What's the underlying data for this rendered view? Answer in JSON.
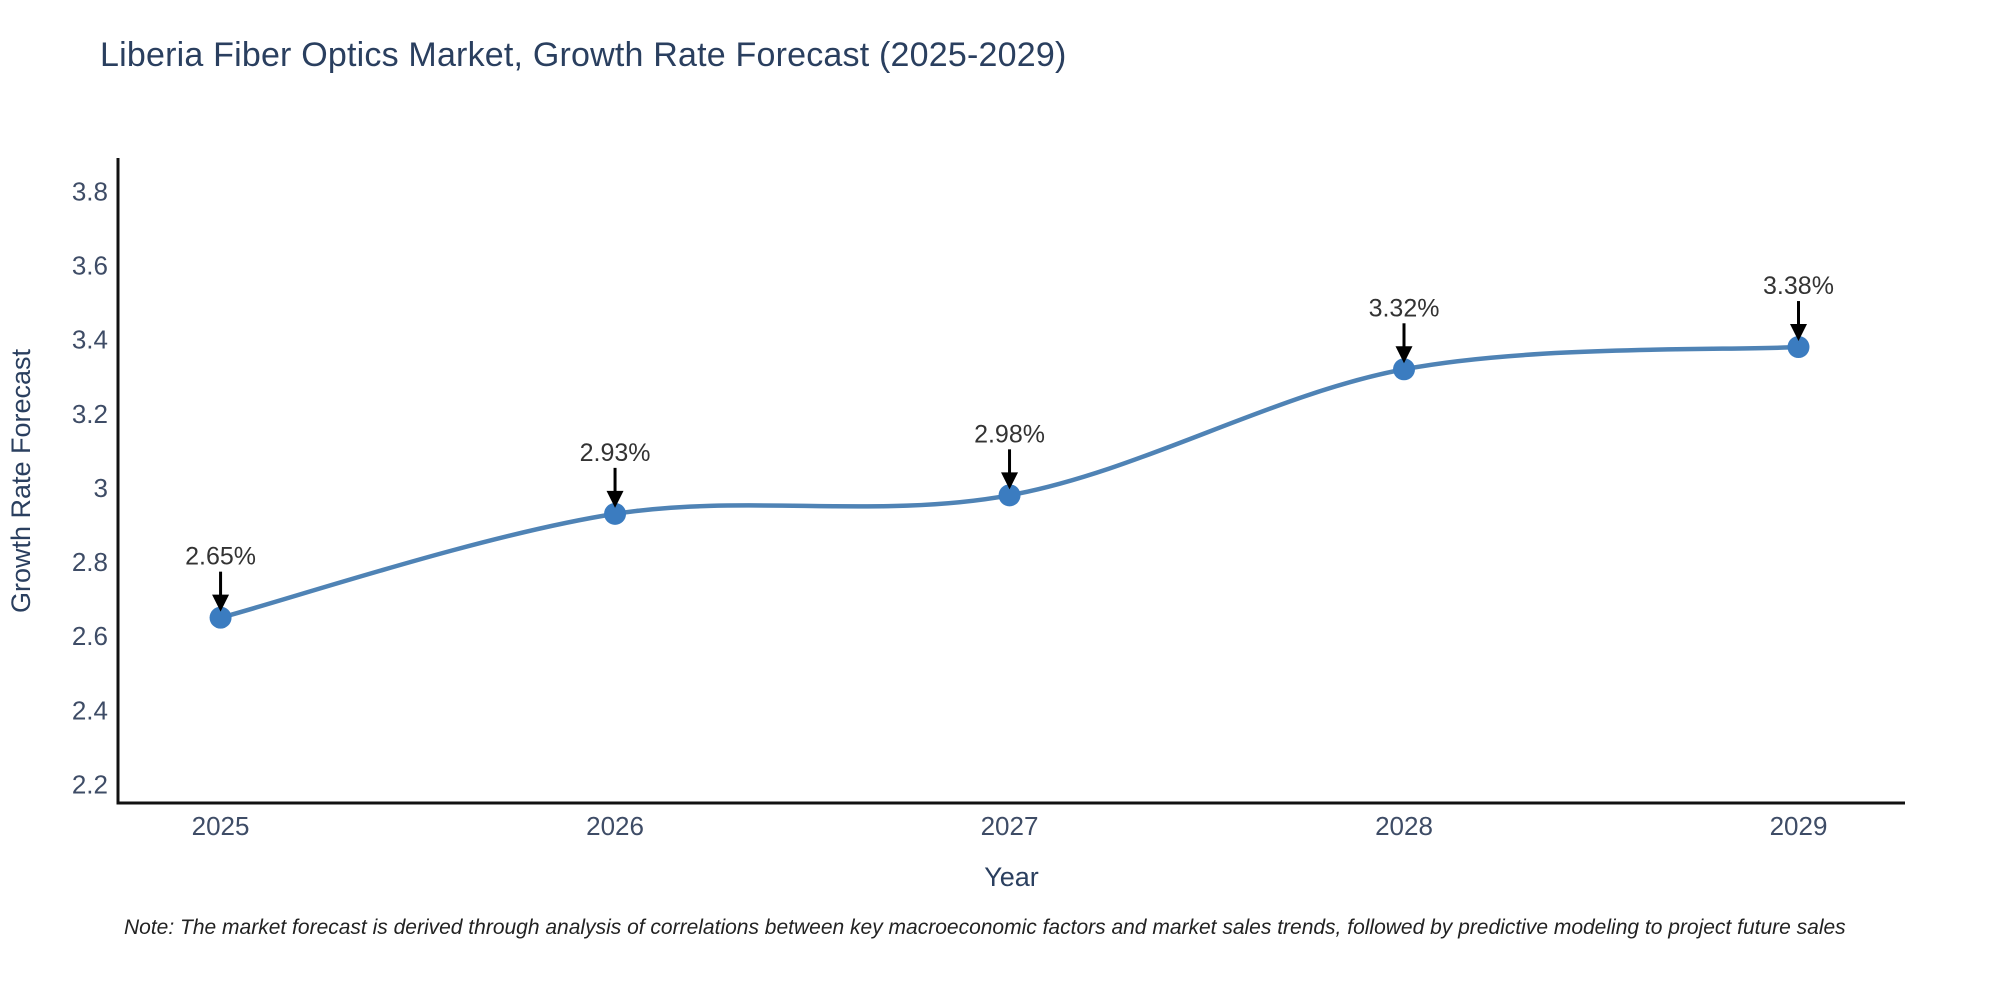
{
  "title": "Liberia Fiber Optics Market, Growth Rate Forecast (2025-2029)",
  "note": "Note: The market forecast is derived through analysis of correlations between key macroeconomic factors and market sales trends, followed by predictive modeling to project future sales",
  "chart_data": {
    "type": "line",
    "title": "Liberia Fiber Optics Market, Growth Rate Forecast (2025-2029)",
    "xlabel": "Year",
    "ylabel": "Growth Rate Forecast",
    "x": [
      2025,
      2026,
      2027,
      2028,
      2029
    ],
    "values": [
      2.65,
      2.93,
      2.98,
      3.32,
      3.38
    ],
    "point_labels": [
      "2.65%",
      "2.93%",
      "2.98%",
      "3.32%",
      "3.38%"
    ],
    "x_tick_labels": [
      "2025",
      "2026",
      "2027",
      "2028",
      "2029"
    ],
    "y_ticks": [
      2.2,
      2.4,
      2.6,
      2.8,
      3.0,
      3.2,
      3.4,
      3.6,
      3.8
    ],
    "y_tick_labels": [
      "2.2",
      "2.4",
      "2.6",
      "2.8",
      "3",
      "3.2",
      "3.4",
      "3.6",
      "3.8"
    ],
    "xlim": [
      2024.74,
      2029.27
    ],
    "ylim": [
      2.15,
      3.89
    ],
    "line_shape": "spline",
    "grid": false,
    "legend": "none",
    "colors": {
      "line": "#4f83b5",
      "marker": "#3b7cc0",
      "axis": "#111111",
      "tick_label": "#3e4c66",
      "axis_title": "#2a3f5f",
      "title": "#2a3f5f",
      "annotation": "#333333",
      "arrow": "#000000",
      "note": "#222222",
      "background": "#ffffff"
    }
  }
}
